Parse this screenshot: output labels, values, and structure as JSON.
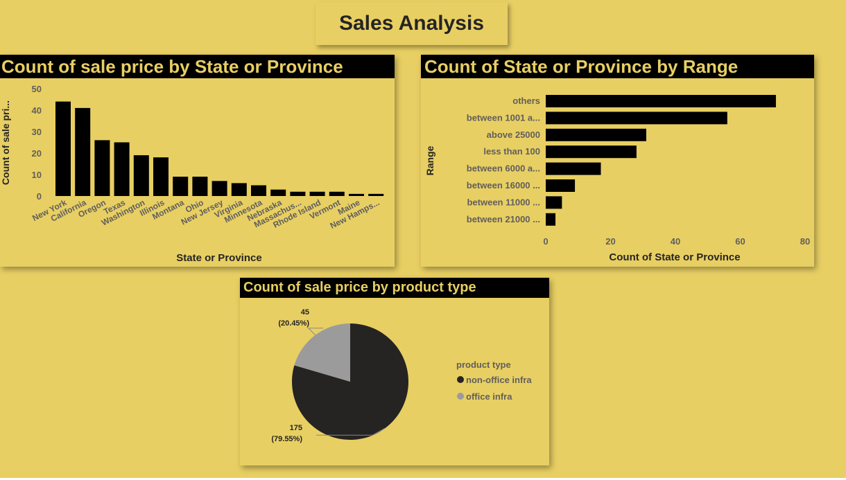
{
  "page": {
    "title": "Sales Analysis"
  },
  "colors": {
    "background": "#e8cf63",
    "bar": "#000000",
    "pie_dark": "#252423",
    "pie_light": "#9b9b9b",
    "header_bg": "#000000",
    "header_text": "#e8cf63"
  },
  "chart_data": [
    {
      "type": "bar",
      "title": "Count of sale price by State or Province",
      "xlabel": "State or Province",
      "ylabel": "Count of sale pri...",
      "ylim": [
        0,
        50
      ],
      "yticks": [
        "0",
        "10",
        "20",
        "30",
        "40",
        "50"
      ],
      "categories": [
        "New York",
        "California",
        "Oregon",
        "Texas",
        "Washington",
        "Illinois",
        "Montana",
        "Ohio",
        "New Jersey",
        "Virginia",
        "Minnesota",
        "Nebraska",
        "Massachus...",
        "Rhode Island",
        "Vermont",
        "Maine",
        "New Hamps..."
      ],
      "values": [
        44,
        41,
        26,
        25,
        19,
        18,
        9,
        9,
        7,
        6,
        5,
        3,
        2,
        2,
        2,
        1,
        1
      ],
      "grid": false
    },
    {
      "type": "bar",
      "orientation": "horizontal",
      "title": "Count of State or Province by Range",
      "xlabel": "Count of State or Province",
      "ylabel": "Range",
      "xlim": [
        0,
        80
      ],
      "xticks": [
        "0",
        "20",
        "40",
        "60",
        "80"
      ],
      "categories": [
        "others",
        "between 1001 a...",
        "above 25000",
        "less than 100",
        "between 6000 a...",
        "between 16000 ...",
        "between 11000 ...",
        "between 21000 ..."
      ],
      "values": [
        71,
        56,
        31,
        28,
        17,
        9,
        5,
        3
      ],
      "grid": false
    },
    {
      "type": "pie",
      "title": "Count of sale price by product type",
      "legend_title": "product type",
      "legend_position": "right",
      "slices": [
        {
          "label": "non-office infra",
          "value": 175,
          "percent": "79.55%",
          "color": "#252423"
        },
        {
          "label": "office infra",
          "value": 45,
          "percent": "20.45%",
          "color": "#9b9b9b"
        }
      ]
    }
  ]
}
